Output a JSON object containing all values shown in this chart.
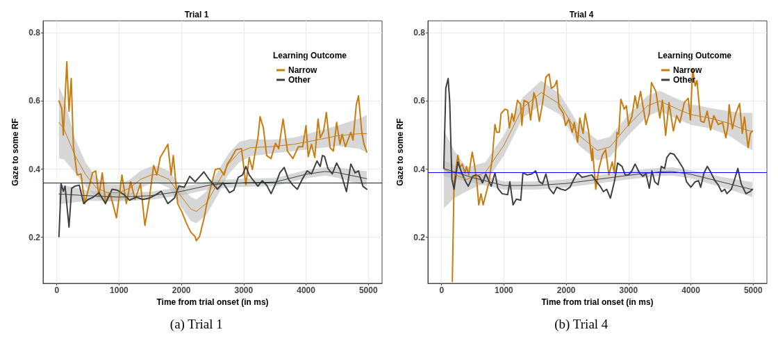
{
  "chart_data": [
    {
      "type": "line",
      "title": "Trial 1",
      "xlabel": "Time from trial onset (in ms)",
      "ylabel": "Gaze to some RF",
      "legend_title": "Learning Outcome",
      "legend": "top right",
      "grid": true,
      "annotations": [
        "(a) Trial 1"
      ],
      "xlim": [
        -220,
        5220
      ],
      "xticks": [
        0,
        1000,
        2000,
        3000,
        4000,
        5000
      ],
      "ylim": [
        0.065,
        0.835
      ],
      "yticks": [
        0.2,
        0.4,
        0.6,
        0.8
      ],
      "ref_lines": [
        {
          "axis": "y",
          "value": 0.36,
          "color": "#0000ff"
        }
      ],
      "series": [
        {
          "name": "Narrow",
          "color": "#c77c0e",
          "x": [
            35,
            81,
            105,
            161,
            196,
            232,
            267,
            326,
            389,
            449,
            512,
            572,
            625,
            677,
            730,
            782,
            853,
            958,
            1046,
            1116,
            1186,
            1256,
            1344,
            1414,
            1484,
            1554,
            1607,
            1660,
            1712,
            1782,
            1835,
            1870,
            1940,
            2011,
            2081,
            2151,
            2221,
            2239,
            2291,
            2361,
            2404,
            2467,
            2544,
            2614,
            2684,
            2737,
            2807,
            2877,
            2965,
            3035,
            3088,
            3140,
            3175,
            3228,
            3263,
            3316,
            3368,
            3439,
            3509,
            3561,
            3632,
            3702,
            3789,
            3877,
            3947,
            4000,
            4035,
            4088,
            4140,
            4193,
            4228,
            4281,
            4326,
            4386,
            4439,
            4491,
            4544,
            4579,
            4632,
            4719,
            4754,
            4807,
            4842,
            4895,
            4930,
            4975
          ],
          "values": [
            0.6,
            0.577,
            0.5,
            0.715,
            0.57,
            0.666,
            0.466,
            0.383,
            0.386,
            0.299,
            0.344,
            0.389,
            0.395,
            0.321,
            0.389,
            0.302,
            0.331,
            0.257,
            0.383,
            0.299,
            0.363,
            0.311,
            0.357,
            0.235,
            0.311,
            0.411,
            0.383,
            0.434,
            0.45,
            0.473,
            0.383,
            0.44,
            0.299,
            0.273,
            0.241,
            0.215,
            0.202,
            0.19,
            0.202,
            0.254,
            0.295,
            0.344,
            0.399,
            0.402,
            0.383,
            0.415,
            0.434,
            0.457,
            0.46,
            0.354,
            0.434,
            0.399,
            0.44,
            0.492,
            0.554,
            0.521,
            0.44,
            0.431,
            0.476,
            0.46,
            0.547,
            0.453,
            0.431,
            0.466,
            0.466,
            0.528,
            0.437,
            0.473,
            0.434,
            0.547,
            0.492,
            0.511,
            0.566,
            0.463,
            0.453,
            0.537,
            0.473,
            0.502,
            0.466,
            0.508,
            0.485,
            0.589,
            0.615,
            0.508,
            0.473,
            0.45
          ]
        },
        {
          "name": "Other",
          "color": "#3f3f3f",
          "x": [
            35,
            70,
            105,
            133,
            196,
            239,
            291,
            361,
            432,
            502,
            589,
            677,
            782,
            888,
            975,
            1081,
            1168,
            1274,
            1379,
            1484,
            1589,
            1677,
            1782,
            1888,
            1958,
            2046,
            2133,
            2221,
            2361,
            2432,
            2579,
            2667,
            2772,
            2842,
            2912,
            2982,
            3035,
            3088,
            3158,
            3228,
            3298,
            3368,
            3439,
            3526,
            3579,
            3649,
            3719,
            3789,
            3860,
            3947,
            4018,
            4088,
            4175,
            4228,
            4263,
            4298,
            4351,
            4421,
            4491,
            4544,
            4596,
            4649,
            4719,
            4789,
            4842,
            4912,
            4975
          ],
          "values": [
            0.202,
            0.357,
            0.335,
            0.35,
            0.23,
            0.344,
            0.35,
            0.353,
            0.299,
            0.311,
            0.318,
            0.331,
            0.299,
            0.341,
            0.338,
            0.325,
            0.309,
            0.318,
            0.311,
            0.315,
            0.325,
            0.335,
            0.299,
            0.315,
            0.35,
            0.347,
            0.379,
            0.363,
            0.392,
            0.373,
            0.341,
            0.36,
            0.331,
            0.338,
            0.376,
            0.383,
            0.408,
            0.383,
            0.366,
            0.35,
            0.366,
            0.353,
            0.328,
            0.363,
            0.389,
            0.405,
            0.37,
            0.353,
            0.341,
            0.373,
            0.395,
            0.386,
            0.424,
            0.408,
            0.44,
            0.437,
            0.402,
            0.386,
            0.418,
            0.399,
            0.366,
            0.334,
            0.415,
            0.389,
            0.395,
            0.35,
            0.341
          ]
        },
        {
          "color": "#c77c0e",
          "x": [
            35,
            116,
            291,
            467,
            642,
            818,
            993,
            1168,
            1344,
            1519,
            1625,
            1800,
            1975,
            2151,
            2239,
            2396,
            2579,
            2754,
            2930,
            3105,
            3456,
            3807,
            4158,
            4509,
            4860,
            4975
          ],
          "values": [
            0.537,
            0.518,
            0.44,
            0.383,
            0.344,
            0.331,
            0.331,
            0.344,
            0.37,
            0.383,
            0.384,
            0.37,
            0.325,
            0.283,
            0.276,
            0.299,
            0.357,
            0.415,
            0.45,
            0.463,
            0.466,
            0.473,
            0.485,
            0.498,
            0.504,
            0.504
          ],
          "lower": [
            0.432,
            0.428,
            0.39,
            0.348,
            0.314,
            0.306,
            0.306,
            0.319,
            0.345,
            0.358,
            0.359,
            0.345,
            0.295,
            0.248,
            0.241,
            0.264,
            0.322,
            0.385,
            0.42,
            0.438,
            0.446,
            0.453,
            0.46,
            0.468,
            0.459,
            0.449
          ],
          "upper": [
            0.642,
            0.608,
            0.49,
            0.418,
            0.374,
            0.356,
            0.356,
            0.369,
            0.395,
            0.408,
            0.409,
            0.395,
            0.355,
            0.318,
            0.311,
            0.334,
            0.392,
            0.445,
            0.48,
            0.488,
            0.486,
            0.493,
            0.51,
            0.528,
            0.549,
            0.559
          ]
        },
        {
          "color": "#3f3f3f",
          "x": [
            35,
            500,
            1000,
            1500,
            2000,
            2500,
            3000,
            3500,
            4000,
            4300,
            4500,
            4975
          ],
          "values": [
            0.327,
            0.322,
            0.318,
            0.322,
            0.335,
            0.355,
            0.36,
            0.362,
            0.385,
            0.393,
            0.39,
            0.372
          ],
          "lower": [
            0.297,
            0.307,
            0.306,
            0.31,
            0.323,
            0.343,
            0.348,
            0.35,
            0.373,
            0.381,
            0.375,
            0.35
          ],
          "upper": [
            0.357,
            0.337,
            0.33,
            0.334,
            0.347,
            0.367,
            0.372,
            0.374,
            0.397,
            0.405,
            0.405,
            0.394
          ]
        }
      ]
    },
    {
      "type": "line",
      "title": "Trial 4",
      "xlabel": "Time from trial onset (in ms)",
      "ylabel": "Gaze to some RF",
      "legend_title": "Learning Outcome",
      "legend": "top right",
      "grid": true,
      "annotations": [
        "(b) Trial 4"
      ],
      "xlim": [
        -220,
        5220
      ],
      "xticks": [
        0,
        1000,
        2000,
        3000,
        4000,
        5000
      ],
      "ylim": [
        0.065,
        0.835
      ],
      "yticks": [
        0.2,
        0.4,
        0.6,
        0.8
      ],
      "ref_lines": [
        {
          "axis": "y",
          "value": 0.39,
          "color": "#0000ff"
        }
      ],
      "series": [
        {
          "name": "Narrow",
          "color": "#c77c0e",
          "x": [
            172,
            200,
            235,
            260,
            295,
            330,
            375,
            400,
            435,
            491,
            526,
            568,
            596,
            632,
            667,
            709,
            761,
            814,
            856,
            884,
            926,
            954,
            1018,
            1060,
            1088,
            1130,
            1158,
            1218,
            1270,
            1288,
            1323,
            1393,
            1428,
            1481,
            1516,
            1568,
            1621,
            1674,
            1726,
            1761,
            1814,
            1849,
            1884,
            1954,
            1989,
            2042,
            2095,
            2130,
            2182,
            2218,
            2270,
            2305,
            2358,
            2411,
            2421,
            2474,
            2526,
            2579,
            2632,
            2684,
            2737,
            2772,
            2814,
            2842,
            2877,
            2930,
            2965,
            3000,
            3053,
            3105,
            3140,
            3193,
            3228,
            3281,
            3333,
            3368,
            3439,
            3502,
            3544,
            3596,
            3649,
            3719,
            3772,
            3825,
            3895,
            3958,
            3993,
            4028,
            4070,
            4098,
            4158,
            4211,
            4263,
            4316,
            4368,
            4439,
            4509,
            4561,
            4596,
            4614,
            4667,
            4719,
            4782,
            4825,
            4860,
            4919,
            4954,
            4989
          ],
          "values": [
            0.07,
            0.363,
            0.405,
            0.441,
            0.405,
            0.415,
            0.389,
            0.408,
            0.383,
            0.45,
            0.415,
            0.357,
            0.295,
            0.328,
            0.295,
            0.325,
            0.363,
            0.434,
            0.531,
            0.508,
            0.508,
            0.563,
            0.576,
            0.573,
            0.521,
            0.563,
            0.54,
            0.602,
            0.589,
            0.528,
            0.602,
            0.595,
            0.544,
            0.624,
            0.605,
            0.54,
            0.595,
            0.67,
            0.679,
            0.637,
            0.644,
            0.66,
            0.583,
            0.563,
            0.528,
            0.547,
            0.508,
            0.537,
            0.479,
            0.55,
            0.505,
            0.563,
            0.512,
            0.425,
            0.46,
            0.341,
            0.402,
            0.441,
            0.457,
            0.383,
            0.421,
            0.389,
            0.508,
            0.502,
            0.605,
            0.576,
            0.586,
            0.528,
            0.554,
            0.615,
            0.579,
            0.628,
            0.589,
            0.531,
            0.563,
            0.654,
            0.628,
            0.55,
            0.602,
            0.499,
            0.595,
            0.512,
            0.557,
            0.537,
            0.595,
            0.608,
            0.544,
            0.695,
            0.644,
            0.66,
            0.541,
            0.537,
            0.57,
            0.515,
            0.557,
            0.531,
            0.537,
            0.492,
            0.528,
            0.589,
            0.518,
            0.563,
            0.592,
            0.505,
            0.553,
            0.463,
            0.505,
            0.512
          ]
        },
        {
          "name": "Other",
          "color": "#3f3f3f",
          "x": [
            35,
            67,
            105,
            130,
            165,
            200,
            260,
            323,
            386,
            428,
            498,
            551,
            604,
            656,
            709,
            796,
            856,
            902,
            972,
            1060,
            1095,
            1147,
            1200,
            1270,
            1305,
            1375,
            1446,
            1509,
            1568,
            1621,
            1674,
            1726,
            1796,
            1849,
            1919,
            1989,
            2060,
            2130,
            2182,
            2253,
            2323,
            2411,
            2474,
            2544,
            2596,
            2649,
            2709,
            2772,
            2825,
            2895,
            2947,
            3000,
            3053,
            3105,
            3175,
            3228,
            3281,
            3333,
            3375,
            3421,
            3474,
            3526,
            3579,
            3614,
            3667,
            3726,
            3789,
            3877,
            3930,
            4000,
            4070,
            4123,
            4158,
            4211,
            4263,
            4316,
            4386,
            4439,
            4491,
            4544,
            4579,
            4649,
            4702,
            4754,
            4807,
            4884,
            4947,
            4989
          ],
          "values": [
            0.402,
            0.637,
            0.666,
            0.599,
            0.37,
            0.341,
            0.421,
            0.389,
            0.363,
            0.35,
            0.379,
            0.383,
            0.379,
            0.36,
            0.386,
            0.35,
            0.389,
            0.344,
            0.328,
            0.325,
            0.363,
            0.295,
            0.312,
            0.309,
            0.389,
            0.383,
            0.386,
            0.395,
            0.363,
            0.357,
            0.386,
            0.344,
            0.328,
            0.347,
            0.341,
            0.338,
            0.347,
            0.373,
            0.389,
            0.376,
            0.379,
            0.383,
            0.366,
            0.35,
            0.334,
            0.341,
            0.315,
            0.363,
            0.418,
            0.408,
            0.383,
            0.383,
            0.395,
            0.415,
            0.389,
            0.379,
            0.386,
            0.344,
            0.395,
            0.363,
            0.354,
            0.408,
            0.402,
            0.434,
            0.447,
            0.444,
            0.428,
            0.402,
            0.363,
            0.347,
            0.363,
            0.366,
            0.347,
            0.389,
            0.408,
            0.392,
            0.366,
            0.354,
            0.334,
            0.341,
            0.328,
            0.341,
            0.37,
            0.402,
            0.357,
            0.328,
            0.334,
            0.341
          ]
        },
        {
          "color": "#c77c0e",
          "x": [
            35,
            200,
            400,
            700,
            1000,
            1300,
            1600,
            1900,
            2200,
            2500,
            2700,
            3000,
            3300,
            3500,
            3800,
            4000,
            4300,
            4600,
            4800,
            4989
          ],
          "values": [
            0.4,
            0.385,
            0.37,
            0.39,
            0.47,
            0.58,
            0.625,
            0.59,
            0.5,
            0.455,
            0.465,
            0.53,
            0.585,
            0.6,
            0.575,
            0.56,
            0.55,
            0.535,
            0.52,
            0.51
          ],
          "lower": [
            0.285,
            0.315,
            0.335,
            0.36,
            0.44,
            0.55,
            0.59,
            0.56,
            0.47,
            0.425,
            0.435,
            0.5,
            0.555,
            0.57,
            0.545,
            0.53,
            0.52,
            0.5,
            0.475,
            0.455
          ],
          "upper": [
            0.515,
            0.455,
            0.405,
            0.42,
            0.5,
            0.61,
            0.66,
            0.62,
            0.53,
            0.485,
            0.495,
            0.56,
            0.615,
            0.63,
            0.605,
            0.59,
            0.58,
            0.57,
            0.565,
            0.565
          ]
        },
        {
          "color": "#3f3f3f",
          "x": [
            35,
            500,
            1000,
            1500,
            2000,
            2500,
            3000,
            3500,
            3700,
            4000,
            4500,
            4989
          ],
          "values": [
            0.402,
            0.375,
            0.352,
            0.352,
            0.358,
            0.37,
            0.382,
            0.392,
            0.393,
            0.385,
            0.362,
            0.34
          ],
          "lower": [
            0.379,
            0.36,
            0.34,
            0.34,
            0.346,
            0.358,
            0.37,
            0.38,
            0.381,
            0.373,
            0.347,
            0.318
          ],
          "upper": [
            0.425,
            0.39,
            0.364,
            0.364,
            0.37,
            0.382,
            0.394,
            0.404,
            0.405,
            0.397,
            0.377,
            0.362
          ]
        }
      ]
    }
  ]
}
